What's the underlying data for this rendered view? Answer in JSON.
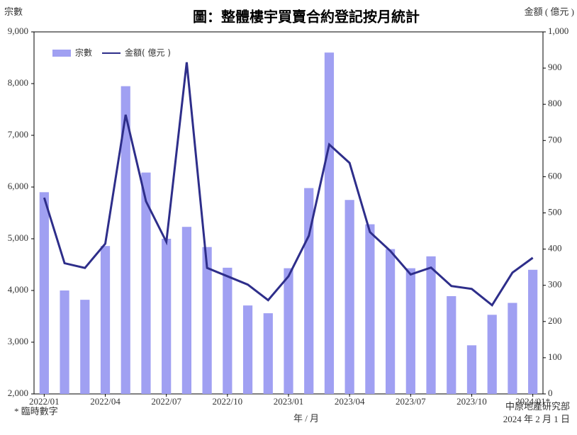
{
  "chart_data": {
    "type": "bar_line",
    "title": "圖：整體樓宇買賣合約登記按月統計",
    "y_label": "宗數",
    "y2_label": "金額 ( 億元 )",
    "x_label": "年 / 月",
    "footnote": "*  臨時數字",
    "source": "中原地產研究部",
    "date": "2024 年 2 月 1 日",
    "categories": [
      "2022/01",
      null,
      null,
      "2022/04",
      null,
      null,
      "2022/07",
      null,
      null,
      "2022/10",
      null,
      null,
      "2023/01",
      null,
      null,
      "2023/04",
      null,
      null,
      "2023/07",
      null,
      null,
      "2023/10",
      null,
      null,
      "2024/01*"
    ],
    "series": [
      {
        "name": "宗數",
        "color": "#a0a0f2",
        "kind": "bar",
        "values": [
          5900,
          4000,
          3820,
          4860,
          7950,
          6280,
          5000,
          5230,
          4840,
          4440,
          3710,
          3560,
          4430,
          5980,
          8600,
          5750,
          5280,
          4800,
          4430,
          4660,
          3890,
          2940,
          3530,
          3760,
          4400
        ]
      },
      {
        "name": "金額( 億元 )",
        "color": "#2e2e8a",
        "kind": "line",
        "axis": "y2",
        "values": [
          542,
          361,
          348,
          415,
          771,
          532,
          420,
          916,
          348,
          325,
          302,
          259,
          325,
          437,
          689,
          638,
          447,
          395,
          330,
          349,
          298,
          290,
          245,
          335,
          376
        ]
      }
    ],
    "ylim": [
      2000,
      9000
    ],
    "yticks": [
      {
        "value": 2000,
        "label": "2,000"
      },
      {
        "value": 3000,
        "label": "3,000"
      },
      {
        "value": 4000,
        "label": "4,000"
      },
      {
        "value": 5000,
        "label": "5,000"
      },
      {
        "value": 6000,
        "label": "6,000"
      },
      {
        "value": 7000,
        "label": "7,000"
      },
      {
        "value": 8000,
        "label": "8,000"
      },
      {
        "value": 9000,
        "label": "9,000"
      }
    ],
    "y2lim": [
      0,
      1000
    ],
    "y2ticks": [
      0,
      100,
      200,
      300,
      400,
      500,
      600,
      700,
      800,
      900,
      {
        "value": 1000,
        "label": "1,000"
      }
    ],
    "legend": "top-left"
  }
}
